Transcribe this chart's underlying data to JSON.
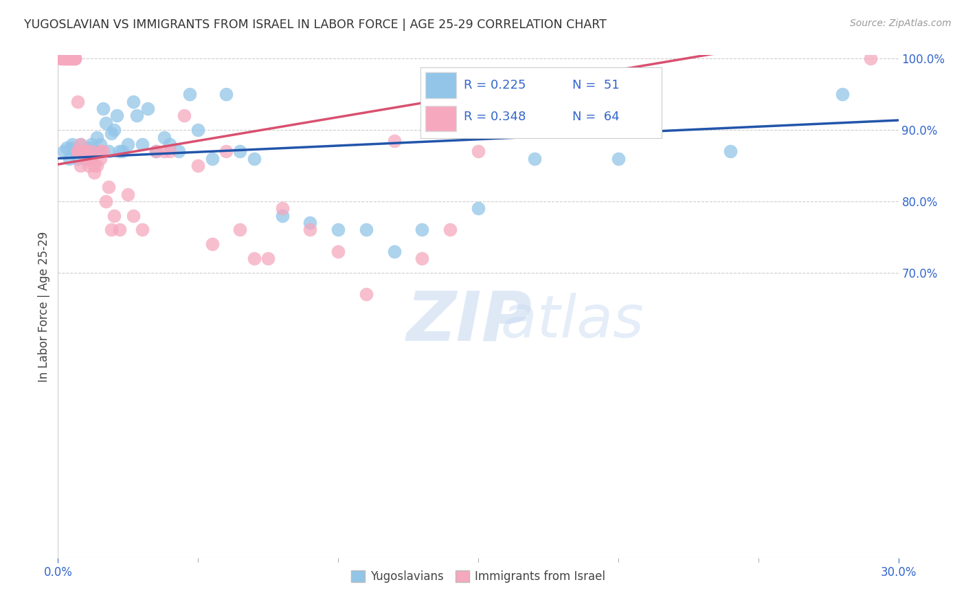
{
  "title": "YUGOSLAVIAN VS IMMIGRANTS FROM ISRAEL IN LABOR FORCE | AGE 25-29 CORRELATION CHART",
  "source": "Source: ZipAtlas.com",
  "ylabel": "In Labor Force | Age 25-29",
  "xlim": [
    0.0,
    0.3
  ],
  "ylim": [
    0.3,
    1.005
  ],
  "ytick_labels": [
    "70.0%",
    "80.0%",
    "90.0%",
    "100.0%"
  ],
  "ytick_vals": [
    0.7,
    0.8,
    0.9,
    1.0
  ],
  "xtick_labels": [
    "0.0%",
    "30.0%"
  ],
  "xtick_vals": [
    0.0,
    0.3
  ],
  "blue_color": "#92C5E8",
  "pink_color": "#F5A8BE",
  "trendline_blue": "#2255AA",
  "trendline_pink": "#D95070",
  "text_color": "#3366CC",
  "blue_r": 0.225,
  "blue_n": 51,
  "pink_r": 0.348,
  "pink_n": 64,
  "blue_x": [
    0.002,
    0.003,
    0.004,
    0.005,
    0.005,
    0.006,
    0.007,
    0.008,
    0.009,
    0.01,
    0.01,
    0.011,
    0.012,
    0.013,
    0.014,
    0.015,
    0.015,
    0.016,
    0.017,
    0.018,
    0.019,
    0.02,
    0.021,
    0.022,
    0.023,
    0.025,
    0.027,
    0.028,
    0.03,
    0.032,
    0.035,
    0.038,
    0.04,
    0.043,
    0.047,
    0.05,
    0.055,
    0.06,
    0.065,
    0.07,
    0.08,
    0.09,
    0.1,
    0.11,
    0.12,
    0.13,
    0.15,
    0.17,
    0.2,
    0.24,
    0.28
  ],
  "blue_y": [
    0.87,
    0.875,
    0.86,
    0.88,
    0.875,
    0.87,
    0.86,
    0.88,
    0.87,
    0.86,
    0.87,
    0.875,
    0.88,
    0.87,
    0.89,
    0.87,
    0.88,
    0.93,
    0.91,
    0.87,
    0.895,
    0.9,
    0.92,
    0.87,
    0.87,
    0.88,
    0.94,
    0.92,
    0.88,
    0.93,
    0.87,
    0.89,
    0.88,
    0.87,
    0.95,
    0.9,
    0.86,
    0.95,
    0.87,
    0.86,
    0.78,
    0.77,
    0.76,
    0.76,
    0.73,
    0.76,
    0.79,
    0.86,
    0.86,
    0.87,
    0.95
  ],
  "pink_x": [
    0.001,
    0.001,
    0.002,
    0.002,
    0.002,
    0.003,
    0.003,
    0.003,
    0.004,
    0.004,
    0.004,
    0.005,
    0.005,
    0.005,
    0.006,
    0.006,
    0.006,
    0.007,
    0.007,
    0.007,
    0.008,
    0.008,
    0.009,
    0.009,
    0.01,
    0.01,
    0.01,
    0.011,
    0.011,
    0.012,
    0.012,
    0.013,
    0.013,
    0.014,
    0.015,
    0.015,
    0.016,
    0.017,
    0.018,
    0.019,
    0.02,
    0.022,
    0.025,
    0.027,
    0.03,
    0.035,
    0.038,
    0.04,
    0.045,
    0.05,
    0.055,
    0.06,
    0.065,
    0.07,
    0.075,
    0.08,
    0.09,
    0.1,
    0.11,
    0.12,
    0.13,
    0.14,
    0.15,
    0.29
  ],
  "pink_y": [
    1.0,
    1.0,
    1.0,
    1.0,
    1.0,
    1.0,
    1.0,
    1.0,
    1.0,
    1.0,
    1.0,
    1.0,
    1.0,
    1.0,
    1.0,
    1.0,
    1.0,
    0.94,
    0.87,
    0.87,
    0.88,
    0.85,
    0.87,
    0.87,
    0.87,
    0.87,
    0.86,
    0.85,
    0.86,
    0.86,
    0.87,
    0.84,
    0.85,
    0.85,
    0.86,
    0.87,
    0.87,
    0.8,
    0.82,
    0.76,
    0.78,
    0.76,
    0.81,
    0.78,
    0.76,
    0.87,
    0.87,
    0.87,
    0.92,
    0.85,
    0.74,
    0.87,
    0.76,
    0.72,
    0.72,
    0.79,
    0.76,
    0.73,
    0.67,
    0.885,
    0.72,
    0.76,
    0.87,
    1.0
  ]
}
